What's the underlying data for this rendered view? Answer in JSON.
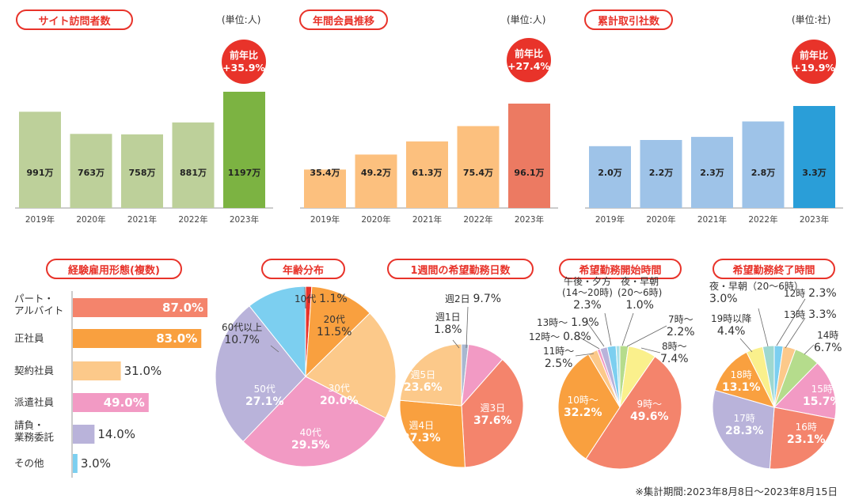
{
  "colors": {
    "accent": "#e8332a",
    "coral": "#f4846c",
    "orange": "#f9a03f",
    "light_orange": "#fcc98a",
    "pink": "#f29ac4",
    "lavender": "#b9b3da",
    "light_blue": "#7ccff0"
  },
  "chart_data": [
    {
      "type": "bar",
      "title": "サイト訪問者数",
      "unit": "(単位:人)",
      "badge": [
        "前年比",
        "+35.9%"
      ],
      "categories": [
        "2019年",
        "2020年",
        "2021年",
        "2022年",
        "2023年"
      ],
      "values": [
        991,
        763,
        758,
        881,
        1197
      ],
      "labels": [
        "991万",
        "763万",
        "758万",
        "881万",
        "1197万"
      ],
      "colors": [
        "#bdd09a",
        "#bdd09a",
        "#bdd09a",
        "#bdd09a",
        "#7cb342"
      ]
    },
    {
      "type": "bar",
      "title": "年間会員推移",
      "unit": "(単位:人)",
      "badge": [
        "前年比",
        "+27.4%"
      ],
      "categories": [
        "2019年",
        "2020年",
        "2021年",
        "2022年",
        "2023年"
      ],
      "values": [
        35.4,
        49.2,
        61.3,
        75.4,
        96.1
      ],
      "labels": [
        "35.4万",
        "49.2万",
        "61.3万",
        "75.4万",
        "96.1万"
      ],
      "colors": [
        "#fcc07e",
        "#fcc07e",
        "#fcc07e",
        "#fcc07e",
        "#ec7a62"
      ]
    },
    {
      "type": "bar",
      "title": "累計取引社数",
      "unit": "(単位:社)",
      "badge": [
        "前年比",
        "+19.9%"
      ],
      "categories": [
        "2019年",
        "2020年",
        "2021年",
        "2022年",
        "2023年"
      ],
      "values": [
        2.0,
        2.2,
        2.3,
        2.8,
        3.3
      ],
      "labels": [
        "2.0万",
        "2.2万",
        "2.3万",
        "2.8万",
        "3.3万"
      ],
      "colors": [
        "#9ec3e8",
        "#9ec3e8",
        "#9ec3e8",
        "#9ec3e8",
        "#2a9ed8"
      ]
    },
    {
      "type": "bar",
      "orientation": "horizontal",
      "title": "経験雇用形態(複数)",
      "categories": [
        "パート・\nアルバイト",
        "正社員",
        "契約社員",
        "派遣社員",
        "請負・\n業務委託",
        "その他"
      ],
      "values": [
        87.0,
        83.0,
        31.0,
        49.0,
        14.0,
        3.0
      ],
      "labels": [
        "87.0%",
        "83.0%",
        "31.0%",
        "49.0%",
        "14.0%",
        "3.0%"
      ],
      "colors": [
        "#f4846c",
        "#f9a03f",
        "#fcc98a",
        "#f29ac4",
        "#b9b3da",
        "#7ccff0"
      ]
    },
    {
      "type": "pie",
      "title": "年齢分布",
      "categories": [
        "10代",
        "20代",
        "30代",
        "40代",
        "50代",
        "60代以上"
      ],
      "values": [
        1.1,
        11.5,
        20.0,
        29.5,
        27.1,
        10.7
      ],
      "labels": [
        "1.1%",
        "11.5%",
        "20.0%",
        "29.5%",
        "27.1%",
        "10.7%"
      ],
      "colors": [
        "#e8332a",
        "#f9a03f",
        "#fcc98a",
        "#f29ac4",
        "#b9b3da",
        "#7ccff0"
      ]
    },
    {
      "type": "pie",
      "title": "1週間の希望勤務日数",
      "categories": [
        "週1日",
        "週2日",
        "週3日",
        "週4日",
        "週5日"
      ],
      "values": [
        1.8,
        9.7,
        37.6,
        27.3,
        23.6
      ],
      "labels": [
        "1.8%",
        "9.7%",
        "37.6%",
        "27.3%",
        "23.6%"
      ],
      "colors": [
        "#a9b8d0",
        "#f29ac4",
        "#f4846c",
        "#f9a03f",
        "#fcc98a"
      ]
    },
    {
      "type": "pie",
      "title": "希望勤務開始時間",
      "categories": [
        "7時～",
        "8時～",
        "9時～",
        "10時～",
        "11時～",
        "12時～",
        "13時～",
        "午後・夕方\n(14～20時)",
        "夜・早朝\n(20～6時)"
      ],
      "values": [
        2.2,
        7.4,
        49.6,
        32.2,
        2.5,
        0.8,
        1.9,
        2.3,
        1.0
      ],
      "labels": [
        "2.2%",
        "7.4%",
        "49.6%",
        "32.2%",
        "2.5%",
        "0.8%",
        "1.9%",
        "2.3%",
        "1.0%"
      ],
      "colors": [
        "#b5dc8c",
        "#faf08c",
        "#f4846c",
        "#f9a03f",
        "#fcc98a",
        "#f29ac4",
        "#b9b3da",
        "#7ccff0",
        "#a8e0e8"
      ]
    },
    {
      "type": "pie",
      "title": "希望勤務終了時間",
      "categories": [
        "12時",
        "13時",
        "14時",
        "15時",
        "16時",
        "17時",
        "18時",
        "19時以降",
        "夜・早朝（20～6時）"
      ],
      "values": [
        2.3,
        3.3,
        6.7,
        15.7,
        23.1,
        28.3,
        13.1,
        4.4,
        3.0
      ],
      "labels": [
        "2.3%",
        "3.3%",
        "6.7%",
        "15.7%",
        "23.1%",
        "28.3%",
        "13.1%",
        "4.4%",
        "3.0%"
      ],
      "colors": [
        "#7ccff0",
        "#fcc98a",
        "#b5dc8c",
        "#f29ac4",
        "#f4846c",
        "#b9b3da",
        "#f9a03f",
        "#faf08c",
        "#9ed8d0"
      ]
    }
  ],
  "note": "※集計期間:2023年8月8日～2023年8月15日"
}
